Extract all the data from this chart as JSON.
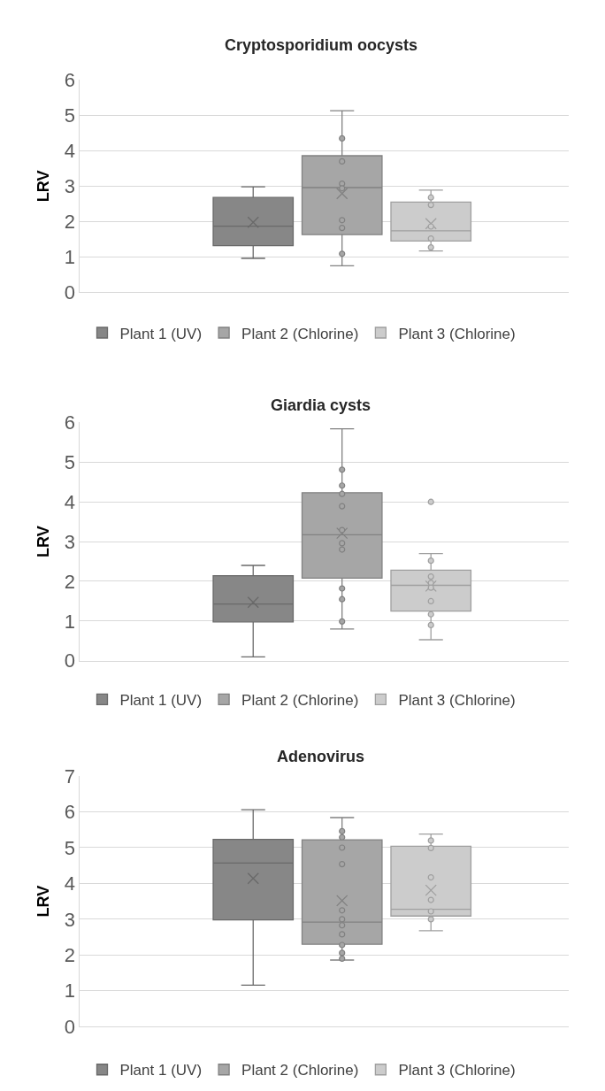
{
  "chart_data": [
    {
      "type": "box",
      "title": "Cryptosporidium oocysts",
      "ylabel": "LRV",
      "categories": [
        null
      ],
      "ylim": [
        0,
        6
      ],
      "yticks": [
        0,
        1,
        2,
        3,
        4,
        5,
        6
      ],
      "grid": "y",
      "legend": "bottom",
      "series": [
        {
          "name": "Plant 1 (UV)",
          "color": "#878787",
          "boxes": [
            {
              "low": 0.96,
              "q1": 1.32,
              "median": 1.87,
              "q3": 2.68,
              "high": 2.98,
              "mean": 1.98
            }
          ]
        },
        {
          "name": "Plant 2 (Chlorine)",
          "color": "#a6a6a6",
          "boxes": [
            {
              "low": 0.75,
              "q1": 1.63,
              "median": 2.96,
              "q3": 3.86,
              "high": 5.13,
              "mean": 2.79,
              "outliers": [
                4.35,
                3.7,
                3.07,
                2.94,
                2.04,
                1.82,
                1.09
              ]
            }
          ]
        },
        {
          "name": "Plant 3 (Chlorine)",
          "color": "#cccccc",
          "boxes": [
            {
              "low": 1.17,
              "q1": 1.45,
              "median": 1.74,
              "q3": 2.55,
              "high": 2.89,
              "mean": 1.94,
              "outliers": [
                2.68,
                2.47,
                1.86,
                1.52,
                1.27
              ]
            }
          ]
        }
      ]
    },
    {
      "type": "box",
      "title": "Giardia cysts",
      "ylabel": "LRV",
      "categories": [
        null
      ],
      "ylim": [
        0,
        6
      ],
      "yticks": [
        0,
        1,
        2,
        3,
        4,
        5,
        6
      ],
      "grid": "y",
      "legend": "bottom",
      "series": [
        {
          "name": "Plant 1 (UV)",
          "color": "#878787",
          "boxes": [
            {
              "low": 0.1,
              "q1": 0.98,
              "median": 1.43,
              "q3": 2.14,
              "high": 2.4,
              "mean": 1.47
            }
          ]
        },
        {
          "name": "Plant 2 (Chlorine)",
          "color": "#a6a6a6",
          "boxes": [
            {
              "low": 0.8,
              "q1": 2.08,
              "median": 3.17,
              "q3": 4.23,
              "high": 5.84,
              "mean": 3.21,
              "outliers": [
                4.81,
                4.41,
                4.2,
                3.89,
                3.29,
                2.96,
                2.8,
                1.82,
                1.55,
                0.99
              ]
            }
          ]
        },
        {
          "name": "Plant 3 (Chlorine)",
          "color": "#cccccc",
          "boxes": [
            {
              "low": 0.53,
              "q1": 1.25,
              "median": 1.9,
              "q3": 2.28,
              "high": 2.7,
              "mean": 1.88,
              "outliers": [
                4.0,
                2.52,
                2.12,
                1.96,
                1.84,
                1.5,
                1.17,
                0.9
              ]
            }
          ]
        }
      ]
    },
    {
      "type": "box",
      "title": "Adenovirus",
      "ylabel": "LRV",
      "categories": [
        null
      ],
      "ylim": [
        0,
        7
      ],
      "yticks": [
        0,
        1,
        2,
        3,
        4,
        5,
        6,
        7
      ],
      "grid": "y",
      "legend": "bottom",
      "series": [
        {
          "name": "Plant 1 (UV)",
          "color": "#878787",
          "boxes": [
            {
              "low": 1.16,
              "q1": 2.98,
              "median": 4.57,
              "q3": 5.23,
              "high": 6.06,
              "mean": 4.14
            }
          ]
        },
        {
          "name": "Plant 2 (Chlorine)",
          "color": "#a6a6a6",
          "boxes": [
            {
              "low": 1.86,
              "q1": 2.3,
              "median": 2.92,
              "q3": 5.22,
              "high": 5.84,
              "mean": 3.52,
              "outliers": [
                5.46,
                5.29,
                5.0,
                4.54,
                3.25,
                3.0,
                2.83,
                2.58,
                2.28,
                2.06,
                1.9
              ]
            }
          ]
        },
        {
          "name": "Plant 3 (Chlorine)",
          "color": "#cccccc",
          "boxes": [
            {
              "low": 2.68,
              "q1": 3.09,
              "median": 3.28,
              "q3": 5.04,
              "high": 5.38,
              "mean": 3.81,
              "outliers": [
                5.2,
                4.99,
                4.17,
                3.54,
                3.22,
                3.0
              ]
            }
          ]
        }
      ]
    }
  ]
}
